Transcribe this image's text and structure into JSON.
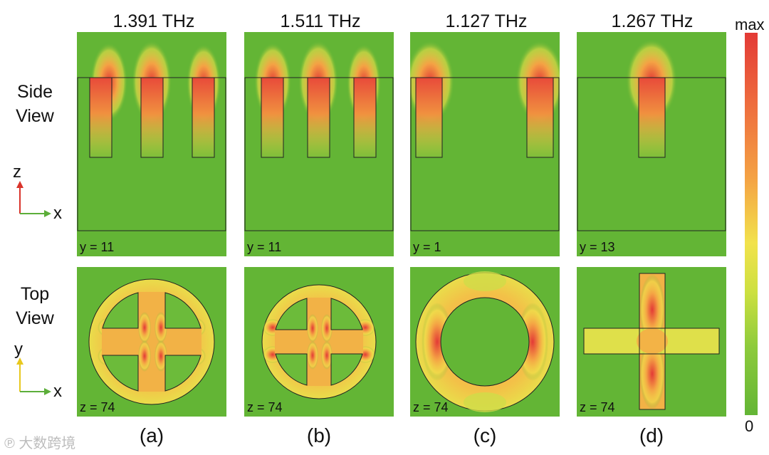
{
  "columns": [
    {
      "freq": "1.391 THz",
      "side_coord": "y = 11",
      "top_coord": "z = 74",
      "label": "(a)"
    },
    {
      "freq": "1.511 THz",
      "side_coord": "y = 11",
      "top_coord": "z = 74",
      "label": "(b)"
    },
    {
      "freq": "1.127 THz",
      "side_coord": "y = 1",
      "top_coord": "z = 74",
      "label": "(c)"
    },
    {
      "freq": "1.267 THz",
      "side_coord": "y = 13",
      "top_coord": "z = 74",
      "label": "(d)"
    }
  ],
  "rows": {
    "side": [
      "Side",
      "View"
    ],
    "top": [
      "Top",
      "View"
    ]
  },
  "axes": {
    "side_vertical": "z",
    "side_horizontal": "x",
    "top_vertical": "y",
    "top_horizontal": "x"
  },
  "colorbar": {
    "max": "max",
    "min": "0"
  },
  "watermark": "大数跨境",
  "colors": {
    "background_field": "#63b535",
    "hot": "#e33a36",
    "warm": "#f4a244",
    "axis_z": "#d9342b",
    "axis_x": "#5cae3a",
    "axis_y": "#e8c81e"
  }
}
